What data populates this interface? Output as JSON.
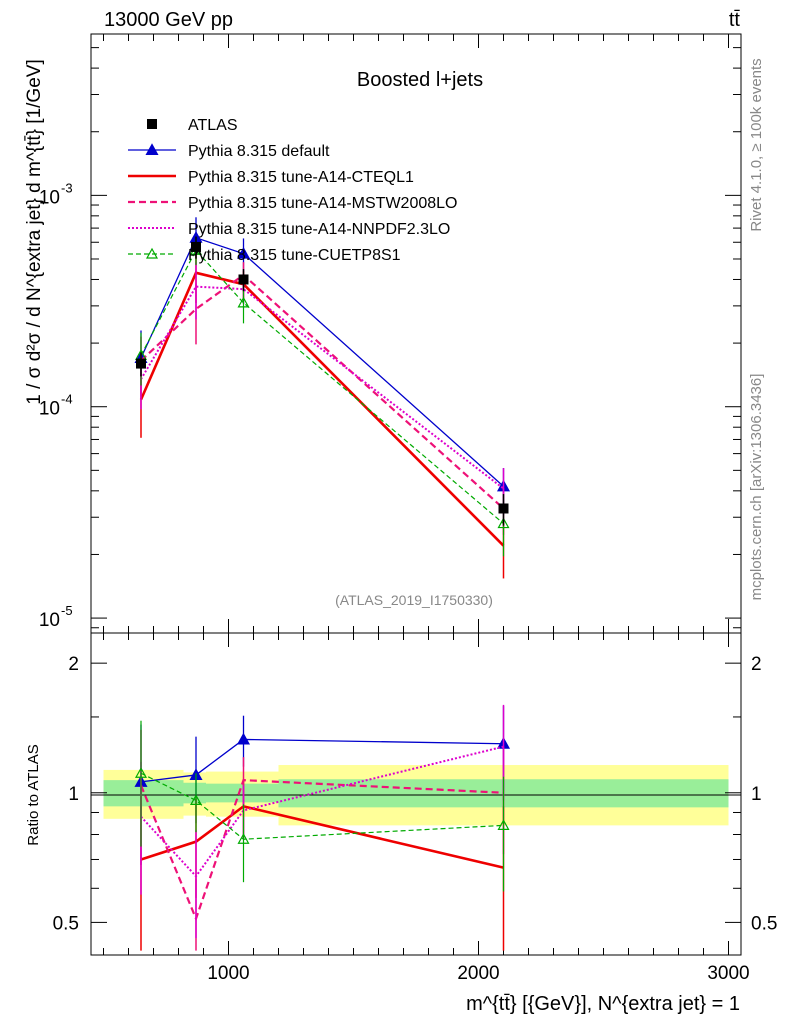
{
  "chart_data": {
    "type": "line",
    "header_left": "13000 GeV pp",
    "header_right": "tt̄",
    "title": "Boosted l+jets",
    "ylabel_main": "1 / σ d²σ / d N^{extra jet} d m^{tt̄} [1/GeV]",
    "ylabel_ratio": "Ratio to ATLAS",
    "xlabel": "m^{tt̄} [{GeV}], N^{extra jet} = 1",
    "analysis_tag": "(ATLAS_2019_I1750330)",
    "side_text_top": "Rivet 4.1.0, ≥ 100k events",
    "side_text_bottom": "mcplots.cern.ch [arXiv:1306.3436]",
    "xlim": [
      450,
      3050
    ],
    "ylim_main": [
      8.5e-06,
      0.0058
    ],
    "ylim_ratio": [
      0.42,
      2.35
    ],
    "x_ticks": [
      1000,
      2000,
      3000
    ],
    "x_tick_labels": [
      "1000",
      "2000",
      "3000"
    ],
    "y_ticks_main": [
      1e-05,
      0.0001,
      0.001
    ],
    "y_tick_labels_main": [
      "10",
      "10",
      "10"
    ],
    "y_tick_exponents_main": [
      "-5",
      "-4",
      "-3"
    ],
    "y_ticks_ratio": [
      0.5,
      1,
      2
    ],
    "y_tick_labels_ratio": [
      "0.5",
      "1",
      "2"
    ],
    "x": [
      650,
      870,
      1060,
      2100
    ],
    "data": {
      "name": "ATLAS",
      "values": [
        0.00016,
        0.00057,
        0.0004,
        3.3e-05
      ],
      "err_stat_rel": [
        0.07,
        0.06,
        0.05,
        0.13
      ],
      "err_total_rel": [
        0.13,
        0.12,
        0.12,
        0.17
      ]
    },
    "band_edges": [
      500,
      820,
      910,
      1200,
      3000
    ],
    "band_green_rel": [
      0.07,
      0.055,
      0.05,
      0.075
    ],
    "band_yellow_rel": [
      0.13,
      0.115,
      0.12,
      0.16
    ],
    "series": [
      {
        "name": "Pythia 8.315 default",
        "color": "#0000cc",
        "dash": "",
        "width": 1.3,
        "marker": "triangle-filled",
        "values": [
          0.00017,
          0.00063,
          0.00053,
          4.2e-05
        ],
        "err_rel": [
          0.35,
          0.25,
          0.18,
          0.22
        ]
      },
      {
        "name": "Pythia 8.315 tune-A14-CTEQL1",
        "color": "#ee0000",
        "dash": "",
        "width": 2.6,
        "marker": "none",
        "values": [
          0.000108,
          0.00043,
          0.00038,
          2.2e-05
        ],
        "err_rel": [
          0.34,
          0.28,
          0.15,
          0.3
        ]
      },
      {
        "name": "Pythia 8.315 tune-A14-MSTW2008LO",
        "color": "#ee1177",
        "dash": "7,4",
        "width": 2.2,
        "marker": "none",
        "values": [
          0.000165,
          0.00029,
          0.00042,
          3.3e-05
        ],
        "err_rel": [
          0.3,
          0.32,
          0.15,
          0.25
        ]
      },
      {
        "name": "Pythia 8.315 tune-A14-NNPDF2.3LO",
        "color": "#dd00cc",
        "dash": "2,2",
        "width": 2.0,
        "marker": "none",
        "values": [
          0.000135,
          0.00037,
          0.00036,
          4.1e-05
        ],
        "err_rel": [
          0.28,
          0.3,
          0.15,
          0.25
        ]
      },
      {
        "name": "Pythia 8.315 tune-CUETP8S1",
        "color": "#00aa00",
        "dash": "5,3",
        "width": 1.2,
        "marker": "triangle-open",
        "values": [
          0.000175,
          0.00055,
          0.00031,
          2.8e-05
        ],
        "err_rel": [
          0.28,
          0.15,
          0.2,
          0.3
        ]
      }
    ],
    "ratio_series": [
      {
        "name": "Pythia 8.315 default",
        "values": [
          1.06,
          1.1,
          1.33,
          1.3
        ],
        "err": [
          0.38,
          0.25,
          0.18,
          0.29
        ]
      },
      {
        "name": "Pythia 8.315 tune-A14-CTEQL1",
        "values": [
          0.7,
          0.77,
          0.93,
          0.67
        ],
        "err": [
          0.28,
          0.2,
          0.14,
          0.26
        ]
      },
      {
        "name": "Pythia 8.315 tune-A14-MSTW2008LO",
        "values": [
          1.04,
          0.51,
          1.07,
          1.0
        ],
        "err": [
          0.36,
          0.12,
          0.14,
          0.28
        ]
      },
      {
        "name": "Pythia 8.315 tune-A14-NNPDF2.3LO",
        "values": [
          0.88,
          0.64,
          0.91,
          1.28
        ],
        "err": [
          0.3,
          0.18,
          0.13,
          0.32
        ]
      },
      {
        "name": "Pythia 8.315 tune-CUETP8S1",
        "values": [
          1.11,
          0.96,
          0.78,
          0.84
        ],
        "err": [
          0.36,
          0.15,
          0.16,
          0.25
        ]
      }
    ]
  }
}
